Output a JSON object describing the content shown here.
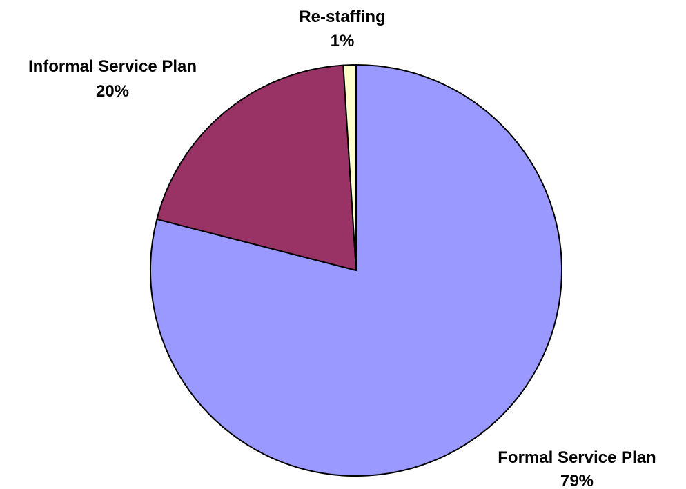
{
  "chart_data": {
    "type": "pie",
    "title": "",
    "categories": [
      "Formal Service Plan",
      "Informal Service Plan",
      "Re-staffing"
    ],
    "values": [
      79,
      20,
      1
    ],
    "value_labels": [
      "79%",
      "20%",
      "1%"
    ],
    "colors": [
      "#9999ff",
      "#993366",
      "#ffffcc"
    ],
    "legend": "none",
    "labels_placement": "outside"
  }
}
